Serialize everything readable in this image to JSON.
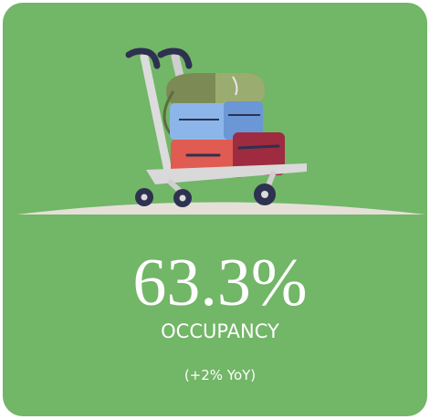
{
  "card": {
    "value": "63.3%",
    "label": "OCCUPANCY",
    "change": "(+2% YoY)"
  }
}
